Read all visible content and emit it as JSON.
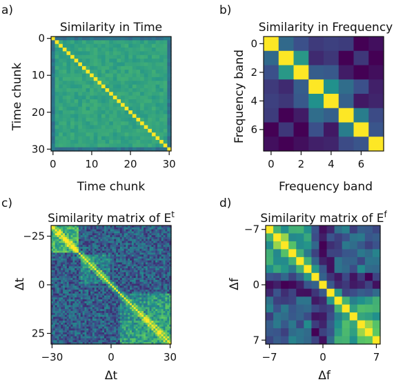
{
  "colormap": [
    "#440154",
    "#3b528b",
    "#21918c",
    "#5ec962",
    "#fde725"
  ],
  "chart_data": [
    {
      "type": "heatmap",
      "panel_label": "a)",
      "title": "Similarity in Time",
      "title_sup": "",
      "xlabel": "Time chunk",
      "ylabel": "Time chunk",
      "size": 31,
      "xticks": [
        {
          "value": 0,
          "label": "0"
        },
        {
          "value": 10,
          "label": "10"
        },
        {
          "value": 20,
          "label": "20"
        },
        {
          "value": 30,
          "label": "30"
        }
      ],
      "yticks": [
        {
          "value": 0,
          "label": "0"
        },
        {
          "value": 10,
          "label": "10"
        },
        {
          "value": 20,
          "label": "20"
        },
        {
          "value": 30,
          "label": "30"
        }
      ],
      "pattern": "time",
      "seed": 11
    },
    {
      "type": "heatmap",
      "panel_label": "b)",
      "title": "Similarity in Frequency",
      "title_sup": "",
      "xlabel": "Frequency band",
      "ylabel": "Frequency band",
      "size": 8,
      "xticks": [
        {
          "value": 0,
          "label": "0"
        },
        {
          "value": 2,
          "label": "2"
        },
        {
          "value": 4,
          "label": "4"
        },
        {
          "value": 6,
          "label": "6"
        }
      ],
      "yticks": [
        {
          "value": 0,
          "label": "0"
        },
        {
          "value": 2,
          "label": "2"
        },
        {
          "value": 4,
          "label": "4"
        },
        {
          "value": 6,
          "label": "6"
        }
      ],
      "pattern": "freq",
      "seed": 23
    },
    {
      "type": "heatmap",
      "panel_label": "c)",
      "title": "Similarity matrix of E",
      "title_sup": "t",
      "xlabel": "Δt",
      "ylabel": "Δt",
      "size": 61,
      "offset": -30,
      "xticks": [
        {
          "value": -30,
          "label": "−30"
        },
        {
          "value": 0,
          "label": "0"
        },
        {
          "value": 30,
          "label": "30"
        }
      ],
      "yticks": [
        {
          "value": -25,
          "label": "−25"
        },
        {
          "value": 0,
          "label": "0"
        },
        {
          "value": 25,
          "label": "25"
        }
      ],
      "pattern": "et",
      "seed": 37
    },
    {
      "type": "heatmap",
      "panel_label": "d)",
      "title": "Similarity matrix of E",
      "title_sup": "f",
      "xlabel": "Δf",
      "ylabel": "Δf",
      "size": 15,
      "offset": -7,
      "xticks": [
        {
          "value": -7,
          "label": "−7"
        },
        {
          "value": 0,
          "label": "0"
        },
        {
          "value": 7,
          "label": "7"
        }
      ],
      "yticks": [
        {
          "value": -7,
          "label": "−7"
        },
        {
          "value": 0,
          "label": "0"
        },
        {
          "value": 7,
          "label": "7"
        }
      ],
      "pattern": "ef",
      "seed": 53
    }
  ]
}
